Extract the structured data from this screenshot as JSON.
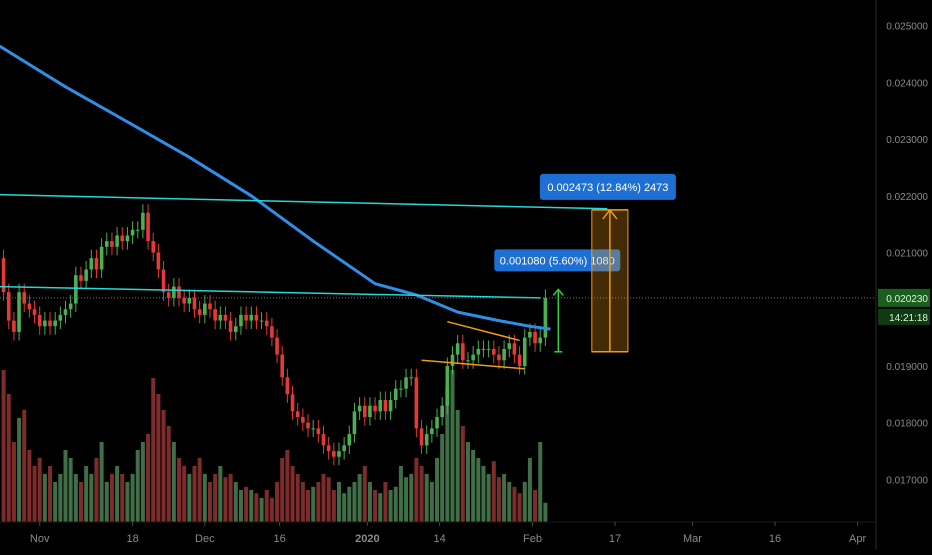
{
  "chart_data": {
    "type": "candlestick",
    "title": "",
    "xlabel": "",
    "ylabel": "",
    "ylim": [
      0.01625,
      0.02545
    ],
    "colors": {
      "background": "#000000",
      "up": "#4caf50",
      "down": "#e53935",
      "volume_up": "#3f6e47",
      "volume_down": "#7d2b2b",
      "ma": "#2f8fe6",
      "trendline": "#27d7d7",
      "triangle": "#f39c12",
      "range_box": "#f39c12",
      "label_bg": "#1e6fd4",
      "axis_text": "#8a8a8a",
      "price_tag_bg": "#1b5e20",
      "price_tag_text": "#d8f5d8"
    },
    "x_axis": {
      "domain": [
        -0.5,
        117
      ],
      "ticks": [
        {
          "i": 7,
          "label": "Nov"
        },
        {
          "i": 25,
          "label": "18"
        },
        {
          "i": 39,
          "label": "Dec"
        },
        {
          "i": 53.5,
          "label": "16"
        },
        {
          "i": 70.5,
          "label": "2020"
        },
        {
          "i": 84.5,
          "label": "14"
        },
        {
          "i": 102.5,
          "label": "Feb"
        },
        {
          "i": 118.5,
          "label": "17"
        },
        {
          "i": 133.5,
          "label": "Mar"
        },
        {
          "i": 149.5,
          "label": "16"
        },
        {
          "i": 165.5,
          "label": "Apr"
        }
      ]
    },
    "y_axis": {
      "ticks": [
        0.025,
        0.024,
        0.023,
        0.022,
        0.021,
        0.019,
        0.018,
        0.017
      ],
      "tick_labels": [
        "0.025000",
        "0.024000",
        "0.023000",
        "0.022000",
        "0.021000",
        "0.019000",
        "0.018000",
        "0.017000"
      ]
    },
    "last_price": {
      "value": 0.0202,
      "label": "0.020230",
      "countdown": "14:21:18"
    },
    "candles_x": [
      0,
      1,
      2,
      3,
      4,
      5,
      6,
      7,
      8,
      9,
      10,
      11,
      12,
      13,
      14,
      15,
      16,
      17,
      18,
      19,
      20,
      21,
      22,
      23,
      24,
      25,
      26,
      27,
      28,
      29,
      30,
      31,
      32,
      33,
      34,
      35,
      36,
      37,
      38,
      39,
      40,
      41,
      42,
      43,
      44,
      45,
      46,
      47,
      48,
      49,
      50,
      51,
      52,
      53,
      54,
      55,
      56,
      57,
      58,
      59,
      60,
      61,
      62,
      63,
      64,
      65,
      66,
      67,
      68,
      69,
      70,
      71,
      72,
      73,
      74,
      75,
      76,
      77,
      78,
      79,
      80,
      81,
      82,
      83,
      84,
      85,
      86,
      87,
      88,
      89,
      90,
      91,
      92,
      93,
      94,
      95,
      96,
      97,
      98,
      99,
      100,
      101,
      102,
      103,
      104,
      105
    ],
    "close": [
      0.0203,
      0.0198,
      0.0196,
      0.0203,
      0.0201,
      0.02,
      0.0199,
      0.0197,
      0.0198,
      0.0197,
      0.0198,
      0.0199,
      0.02,
      0.0201,
      0.0206,
      0.0205,
      0.0207,
      0.0209,
      0.0207,
      0.0211,
      0.0212,
      0.0211,
      0.0213,
      0.0212,
      0.0213,
      0.0214,
      0.0214,
      0.0217,
      0.0212,
      0.021,
      0.0207,
      0.0203,
      0.0202,
      0.0204,
      0.0202,
      0.0201,
      0.0202,
      0.02,
      0.0199,
      0.0201,
      0.02,
      0.0198,
      0.0199,
      0.0198,
      0.0196,
      0.0197,
      0.0199,
      0.0198,
      0.0199,
      0.0198,
      0.0198,
      0.0197,
      0.0195,
      0.0192,
      0.0188,
      0.0185,
      0.0182,
      0.0181,
      0.018,
      0.0179,
      0.0179,
      0.0178,
      0.0176,
      0.0175,
      0.0174,
      0.0175,
      0.0176,
      0.0178,
      0.0182,
      0.0183,
      0.0181,
      0.0183,
      0.0182,
      0.0184,
      0.0182,
      0.0184,
      0.0186,
      0.0186,
      0.0188,
      0.0188,
      0.0179,
      0.0176,
      0.0178,
      0.0179,
      0.0181,
      0.0183,
      0.019,
      0.0192,
      0.0194,
      0.0191,
      0.0191,
      0.0192,
      0.0193,
      0.0193,
      0.0193,
      0.0192,
      0.0191,
      0.0193,
      0.0194,
      0.0192,
      0.019,
      0.0195,
      0.0196,
      0.0194,
      0.0195,
      0.0202
    ],
    "open": [
      0.0209,
      0.0203,
      0.0198,
      0.0196,
      0.0203,
      0.0201,
      0.02,
      0.0199,
      0.0197,
      0.0198,
      0.0197,
      0.0198,
      0.0199,
      0.02,
      0.0201,
      0.0206,
      0.0205,
      0.0207,
      0.0209,
      0.0207,
      0.0211,
      0.0212,
      0.0211,
      0.0213,
      0.0212,
      0.0213,
      0.0214,
      0.0214,
      0.0217,
      0.0212,
      0.021,
      0.0207,
      0.0203,
      0.0202,
      0.0204,
      0.0202,
      0.0201,
      0.0202,
      0.02,
      0.0199,
      0.0201,
      0.02,
      0.0198,
      0.0199,
      0.0198,
      0.0196,
      0.0197,
      0.0199,
      0.0198,
      0.0199,
      0.0198,
      0.0198,
      0.0197,
      0.0195,
      0.0192,
      0.0188,
      0.0185,
      0.0182,
      0.0181,
      0.018,
      0.0179,
      0.0179,
      0.0178,
      0.0176,
      0.0175,
      0.0174,
      0.0175,
      0.0176,
      0.0178,
      0.0182,
      0.0183,
      0.0181,
      0.0183,
      0.0182,
      0.0184,
      0.0182,
      0.0184,
      0.0186,
      0.0186,
      0.0188,
      0.0188,
      0.0179,
      0.0176,
      0.0178,
      0.0179,
      0.0181,
      0.0183,
      0.019,
      0.0192,
      0.0194,
      0.0191,
      0.0191,
      0.0192,
      0.0193,
      0.0193,
      0.0193,
      0.0192,
      0.0191,
      0.0193,
      0.0194,
      0.0192,
      0.019,
      0.0195,
      0.0196,
      0.0194,
      0.0195
    ],
    "volume": [
      0.95,
      0.8,
      0.5,
      0.65,
      0.7,
      0.45,
      0.35,
      0.4,
      0.3,
      0.35,
      0.25,
      0.3,
      0.45,
      0.4,
      0.3,
      0.25,
      0.35,
      0.3,
      0.4,
      0.5,
      0.25,
      0.3,
      0.35,
      0.3,
      0.25,
      0.3,
      0.45,
      0.5,
      0.55,
      0.9,
      0.8,
      0.7,
      0.6,
      0.5,
      0.4,
      0.35,
      0.3,
      0.35,
      0.4,
      0.3,
      0.25,
      0.3,
      0.35,
      0.28,
      0.3,
      0.25,
      0.2,
      0.22,
      0.2,
      0.18,
      0.15,
      0.2,
      0.15,
      0.25,
      0.4,
      0.45,
      0.35,
      0.3,
      0.25,
      0.2,
      0.22,
      0.25,
      0.3,
      0.28,
      0.2,
      0.25,
      0.18,
      0.22,
      0.25,
      0.3,
      0.35,
      0.25,
      0.2,
      0.18,
      0.25,
      0.2,
      0.22,
      0.35,
      0.28,
      0.3,
      0.4,
      0.35,
      0.3,
      0.25,
      0.4,
      0.55,
      0.85,
      0.95,
      0.7,
      0.6,
      0.5,
      0.45,
      0.4,
      0.35,
      0.3,
      0.38,
      0.28,
      0.3,
      0.25,
      0.22,
      0.18,
      0.25,
      0.4,
      0.2,
      0.5,
      0.12
    ],
    "moving_average": {
      "x": [
        -1,
        12,
        25,
        36,
        48,
        60,
        72,
        80,
        88,
        96,
        102,
        106
      ],
      "y": [
        0.02465,
        0.02392,
        0.02325,
        0.02268,
        0.022,
        0.0212,
        0.02045,
        0.02025,
        0.01995,
        0.0198,
        0.0197,
        0.01965
      ]
    },
    "lines": [
      {
        "name": "upper-trendline",
        "x1": -1,
        "y1": 0.02202,
        "x2": 117,
        "y2": 0.02177,
        "color": "#27d7d7"
      },
      {
        "name": "lower-trendline",
        "x1": -1,
        "y1": 0.0204,
        "x2": 104,
        "y2": 0.0202,
        "color": "#27d7d7"
      },
      {
        "name": "triangle-top",
        "x1": 86,
        "y1": 0.01978,
        "x2": 100,
        "y2": 0.01945,
        "color": "#f39c12"
      },
      {
        "name": "triangle-bottom",
        "x1": 81,
        "y1": 0.0191,
        "x2": 101,
        "y2": 0.01895,
        "color": "#f39c12"
      }
    ],
    "measure_small": {
      "x": 107.5,
      "from": 0.01925,
      "to": 0.02035,
      "label": "0.001080 (5.60%) 1080"
    },
    "measure_large": {
      "x1": 114,
      "x2": 121,
      "from": 0.01925,
      "to": 0.02175,
      "label": "0.002473 (12.84%) 2473"
    }
  }
}
